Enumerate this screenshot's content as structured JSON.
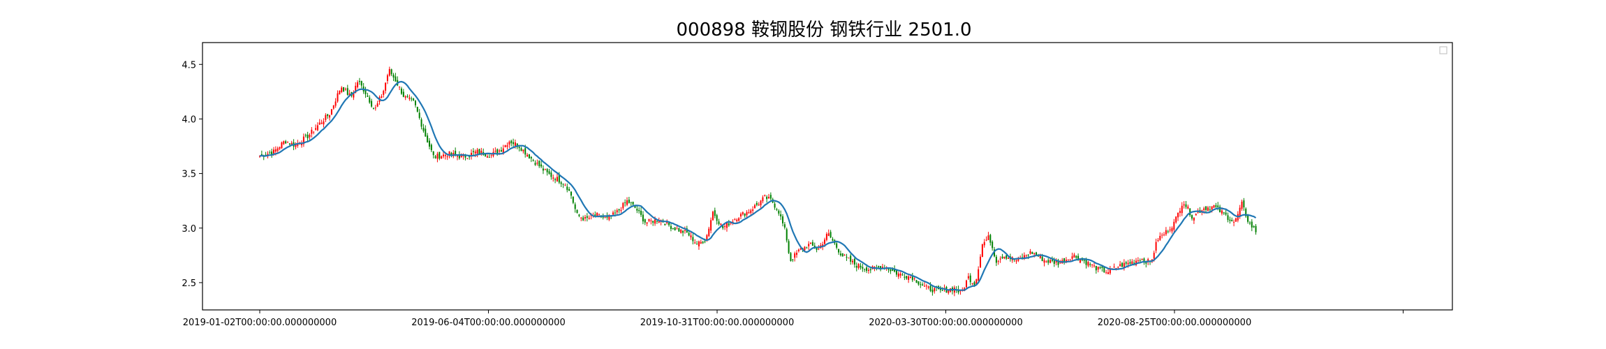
{
  "chart_data": {
    "type": "candlestick",
    "title": "000898 鞍钢股份 钢铁行业 2501.0",
    "xlabel": "",
    "ylabel": "",
    "ylim": [
      2.25,
      4.7
    ],
    "y_ticks": [
      2.5,
      3.0,
      3.5,
      4.0,
      4.5
    ],
    "y_tick_labels": [
      "2.5",
      "3.0",
      "3.5",
      "4.0",
      "4.5"
    ],
    "x_tick_labels": [
      "2019-01-02T00:00:00.000000000",
      "2019-06-04T00:00:00.000000000",
      "2019-10-31T00:00:00.000000000",
      "2020-03-30T00:00:00.000000000",
      "2020-08-25T00:00:00.000000000"
    ],
    "grid": false,
    "legend": "top-right",
    "up_color": "#ff0000",
    "down_color": "#008000",
    "ma_color": "#1f77b4",
    "n_periods": 500,
    "close_anchors": [
      [
        0,
        3.66
      ],
      [
        10,
        3.7
      ],
      [
        18,
        3.8
      ],
      [
        25,
        3.76
      ],
      [
        35,
        3.85
      ],
      [
        42,
        3.95
      ],
      [
        50,
        4.05
      ],
      [
        58,
        4.3
      ],
      [
        65,
        4.2
      ],
      [
        70,
        4.35
      ],
      [
        75,
        4.25
      ],
      [
        82,
        4.08
      ],
      [
        88,
        4.25
      ],
      [
        92,
        4.45
      ],
      [
        97,
        4.35
      ],
      [
        103,
        4.2
      ],
      [
        110,
        4.15
      ],
      [
        118,
        3.85
      ],
      [
        124,
        3.65
      ],
      [
        135,
        3.68
      ],
      [
        145,
        3.65
      ],
      [
        155,
        3.7
      ],
      [
        165,
        3.67
      ],
      [
        172,
        3.72
      ],
      [
        178,
        3.8
      ],
      [
        185,
        3.75
      ],
      [
        195,
        3.62
      ],
      [
        205,
        3.5
      ],
      [
        212,
        3.45
      ],
      [
        218,
        3.4
      ],
      [
        222,
        3.3
      ],
      [
        226,
        3.12
      ],
      [
        232,
        3.08
      ],
      [
        240,
        3.12
      ],
      [
        248,
        3.08
      ],
      [
        255,
        3.15
      ],
      [
        262,
        3.25
      ],
      [
        268,
        3.18
      ],
      [
        275,
        3.05
      ],
      [
        285,
        3.08
      ],
      [
        295,
        3.0
      ],
      [
        305,
        2.95
      ],
      [
        312,
        2.85
      ],
      [
        318,
        2.9
      ],
      [
        323,
        3.15
      ],
      [
        330,
        3.0
      ],
      [
        340,
        3.1
      ],
      [
        348,
        3.15
      ],
      [
        355,
        3.22
      ],
      [
        360,
        3.28
      ],
      [
        365,
        3.25
      ],
      [
        370,
        3.15
      ],
      [
        375,
        2.95
      ],
      [
        378,
        2.7
      ],
      [
        385,
        2.8
      ],
      [
        392,
        2.85
      ],
      [
        398,
        2.8
      ],
      [
        405,
        2.95
      ],
      [
        410,
        2.85
      ],
      [
        415,
        2.75
      ],
      [
        425,
        2.66
      ],
      [
        435,
        2.62
      ],
      [
        445,
        2.65
      ],
      [
        455,
        2.58
      ],
      [
        465,
        2.55
      ],
      [
        475,
        2.45
      ],
      [
        485,
        2.42
      ],
      [
        495,
        2.45
      ],
      [
        500,
        2.4
      ],
      [
        505,
        2.55
      ],
      [
        510,
        2.48
      ],
      [
        515,
        2.85
      ],
      [
        520,
        2.92
      ],
      [
        525,
        2.7
      ],
      [
        530,
        2.75
      ],
      [
        540,
        2.7
      ],
      [
        550,
        2.78
      ],
      [
        560,
        2.7
      ],
      [
        570,
        2.68
      ],
      [
        580,
        2.75
      ],
      [
        590,
        2.68
      ],
      [
        598,
        2.62
      ],
      [
        605,
        2.6
      ],
      [
        612,
        2.65
      ],
      [
        620,
        2.68
      ],
      [
        628,
        2.72
      ],
      [
        635,
        2.68
      ],
      [
        640,
        2.9
      ],
      [
        645,
        2.95
      ],
      [
        652,
        3.05
      ],
      [
        658,
        3.25
      ],
      [
        665,
        3.1
      ],
      [
        672,
        3.18
      ],
      [
        680,
        3.2
      ],
      [
        688,
        3.12
      ],
      [
        695,
        3.05
      ],
      [
        700,
        3.22
      ],
      [
        705,
        3.05
      ],
      [
        710,
        2.97
      ]
    ]
  }
}
